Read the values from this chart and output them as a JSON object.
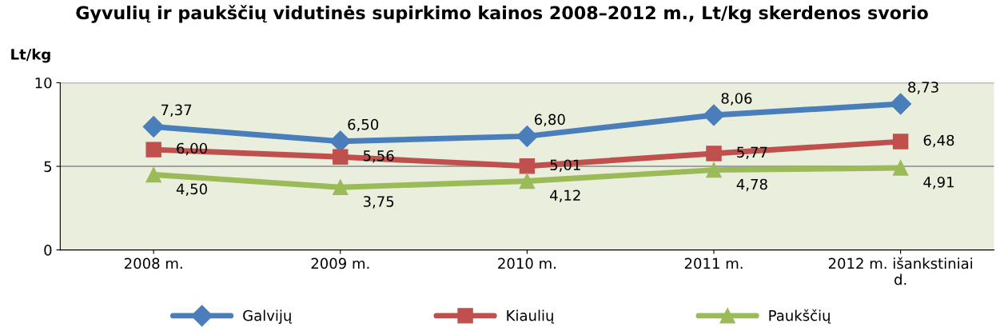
{
  "chart_data": {
    "type": "line",
    "title": "Gyvulių ir paukščių vidutinės supirkimo kainos 2008–2012 m., Lt/kg skerdenos svorio",
    "ylabel": "Lt/kg",
    "categories": [
      "2008 m.",
      "2009 m.",
      "2010 m.",
      "2011 m.",
      "2012 m. išankstiniai d."
    ],
    "series": [
      {
        "name": "Galvijų",
        "color": "#4a7ebb",
        "marker": "diamond",
        "values": [
          7.37,
          6.5,
          6.8,
          8.06,
          8.73
        ],
        "value_labels": [
          "7,37",
          "6,50",
          "6,80",
          "8,06",
          "8,73"
        ]
      },
      {
        "name": "Kiaulių",
        "color": "#c0504d",
        "marker": "square",
        "values": [
          6.0,
          5.56,
          5.01,
          5.77,
          6.48
        ],
        "value_labels": [
          "6,00",
          "5,56",
          "5,01",
          "5,77",
          "6,48"
        ]
      },
      {
        "name": "Paukščių",
        "color": "#9bbb59",
        "marker": "triangle",
        "values": [
          4.5,
          3.75,
          4.12,
          4.78,
          4.91
        ],
        "value_labels": [
          "4,50",
          "3,75",
          "4,12",
          "4,78",
          "4,91"
        ]
      }
    ],
    "ylim": [
      0,
      10
    ],
    "yticks": [
      0,
      5,
      10
    ],
    "grid": "y",
    "legend": "bottom",
    "line_style": "solid"
  }
}
